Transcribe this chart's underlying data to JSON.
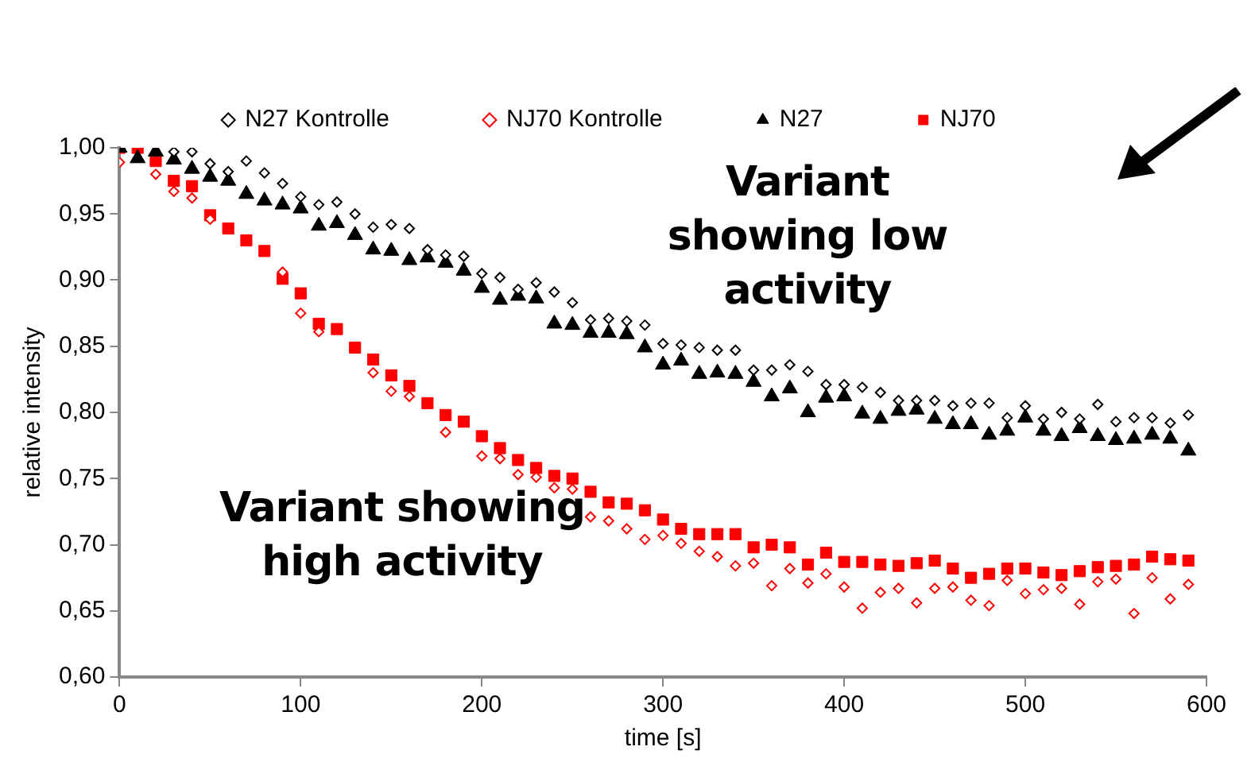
{
  "chart_data": {
    "type": "scatter",
    "xlabel": "time [s]",
    "ylabel": "relative intensity",
    "x": [
      0,
      10,
      20,
      30,
      40,
      50,
      60,
      70,
      80,
      90,
      100,
      110,
      120,
      130,
      140,
      150,
      160,
      170,
      180,
      190,
      200,
      210,
      220,
      230,
      240,
      250,
      260,
      270,
      280,
      290,
      300,
      310,
      320,
      330,
      340,
      350,
      360,
      370,
      380,
      390,
      400,
      410,
      420,
      430,
      440,
      450,
      460,
      470,
      480,
      490,
      500,
      510,
      520,
      530,
      540,
      550,
      560,
      570,
      580,
      590
    ],
    "series": [
      {
        "name": "N27 Kontrolle",
        "color": "#000000",
        "marker": "diamond",
        "values": [
          null,
          null,
          null,
          0.997,
          0.997,
          0.988,
          0.982,
          0.99,
          0.981,
          0.973,
          0.963,
          0.957,
          0.959,
          0.95,
          0.94,
          0.942,
          0.939,
          0.923,
          0.919,
          0.918,
          0.905,
          0.902,
          0.893,
          0.898,
          0.891,
          0.883,
          0.87,
          0.871,
          0.869,
          0.866,
          0.852,
          0.851,
          0.849,
          0.847,
          0.847,
          0.832,
          0.832,
          0.836,
          0.831,
          0.821,
          0.821,
          0.819,
          0.815,
          0.809,
          0.809,
          0.809,
          0.805,
          0.807,
          0.807,
          0.796,
          0.805,
          0.795,
          0.8,
          0.795,
          0.806,
          0.793,
          0.796,
          0.796,
          0.792,
          0.798
        ]
      },
      {
        "name": "NJ70 Kontrolle",
        "color": "#ff0000",
        "marker": "diamond",
        "values": [
          0.989,
          null,
          0.98,
          0.967,
          0.962,
          0.946,
          null,
          null,
          null,
          0.906,
          0.875,
          0.861,
          null,
          null,
          0.83,
          0.816,
          0.812,
          null,
          0.785,
          null,
          0.767,
          0.765,
          0.753,
          0.751,
          0.743,
          0.742,
          0.721,
          0.718,
          0.712,
          0.704,
          0.707,
          0.701,
          0.695,
          0.691,
          0.684,
          0.686,
          0.669,
          0.682,
          0.671,
          0.678,
          0.668,
          0.652,
          0.664,
          0.667,
          0.656,
          0.667,
          0.668,
          0.658,
          0.654,
          0.673,
          0.663,
          0.666,
          0.667,
          0.655,
          0.672,
          0.674,
          0.648,
          0.675,
          0.659,
          0.67
        ]
      },
      {
        "name": "N27",
        "color": "#000000",
        "marker": "triangle",
        "values": [
          1.0,
          0.992,
          0.997,
          0.991,
          0.984,
          0.978,
          0.975,
          0.965,
          0.96,
          0.957,
          0.954,
          0.941,
          0.943,
          0.934,
          0.923,
          0.922,
          0.915,
          0.917,
          0.913,
          0.907,
          0.894,
          0.885,
          0.888,
          0.886,
          0.867,
          0.866,
          0.86,
          0.86,
          0.859,
          0.849,
          0.836,
          0.839,
          0.829,
          0.83,
          0.829,
          0.823,
          0.812,
          0.818,
          0.8,
          0.811,
          0.812,
          0.799,
          0.795,
          0.801,
          0.802,
          0.795,
          0.791,
          0.791,
          0.783,
          0.786,
          0.796,
          0.786,
          0.782,
          0.788,
          0.782,
          0.779,
          0.78,
          0.783,
          0.78,
          0.771
        ]
      },
      {
        "name": "NJ70",
        "color": "#ff0000",
        "marker": "square",
        "values": [
          1.0,
          1.0,
          0.99,
          0.975,
          0.971,
          0.949,
          0.939,
          0.93,
          0.922,
          0.901,
          0.89,
          0.867,
          0.863,
          0.849,
          0.84,
          0.828,
          0.82,
          0.807,
          0.798,
          0.793,
          0.782,
          0.773,
          0.764,
          0.758,
          0.752,
          0.75,
          0.74,
          0.732,
          0.731,
          0.726,
          0.719,
          0.712,
          0.708,
          0.708,
          0.708,
          0.698,
          0.7,
          0.698,
          0.685,
          0.694,
          0.687,
          0.687,
          0.685,
          0.684,
          0.686,
          0.688,
          0.682,
          0.675,
          0.678,
          0.682,
          0.682,
          0.679,
          0.677,
          0.68,
          0.683,
          0.684,
          0.685,
          0.691,
          0.689,
          0.688
        ]
      }
    ],
    "xlim": [
      0,
      600
    ],
    "xticks": [
      0,
      100,
      200,
      300,
      400,
      500,
      600
    ],
    "ylim": [
      0.6,
      1.0
    ],
    "yticks": [
      {
        "value": 0.6,
        "label": "0,60"
      },
      {
        "value": 0.65,
        "label": "0,65"
      },
      {
        "value": 0.7,
        "label": "0,70"
      },
      {
        "value": 0.75,
        "label": "0,75"
      },
      {
        "value": 0.8,
        "label": "0,80"
      },
      {
        "value": 0.85,
        "label": "0,85"
      },
      {
        "value": 0.9,
        "label": "0,90"
      },
      {
        "value": 0.95,
        "label": "0,95"
      },
      {
        "value": 1.0,
        "label": "1,00"
      }
    ],
    "grid": false,
    "legend": "top",
    "annotations": [
      "Variant showing low activity",
      "Variant showing high activity"
    ]
  }
}
